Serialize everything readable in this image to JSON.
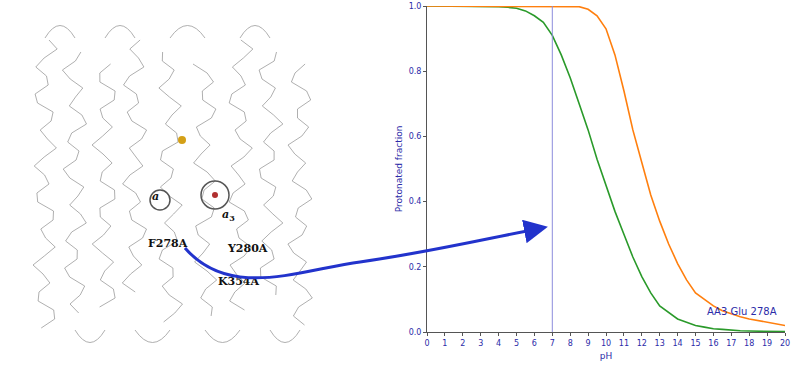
{
  "chart_data": {
    "type": "line",
    "x": [
      0,
      0.5,
      1,
      1.5,
      2,
      2.5,
      3,
      3.5,
      4,
      4.5,
      5,
      5.5,
      6,
      6.5,
      7,
      7.5,
      8,
      8.5,
      9,
      9.5,
      10,
      10.5,
      11,
      11.5,
      12,
      12.5,
      13,
      13.5,
      14,
      14.5,
      15,
      15.5,
      16,
      16.5,
      17,
      17.5,
      18,
      18.5,
      19,
      19.5,
      20
    ],
    "series": [
      {
        "color": "#2a9a2a",
        "values": [
          1,
          1,
          1,
          1,
          1,
          1,
          1,
          0.999,
          0.998,
          0.996,
          0.993,
          0.985,
          0.97,
          0.95,
          0.91,
          0.85,
          0.78,
          0.7,
          0.62,
          0.53,
          0.45,
          0.37,
          0.3,
          0.23,
          0.17,
          0.12,
          0.08,
          0.06,
          0.04,
          0.03,
          0.02,
          0.015,
          0.01,
          0.008,
          0.005,
          0.004,
          0.003,
          0.002,
          0.002,
          0.001,
          0.001
        ]
      },
      {
        "color": "#ff7f0e",
        "values": [
          1,
          1,
          1,
          1,
          1,
          1,
          1,
          1,
          1,
          1,
          1,
          1,
          1,
          1,
          1,
          1,
          1,
          0.998,
          0.99,
          0.97,
          0.93,
          0.85,
          0.74,
          0.62,
          0.52,
          0.42,
          0.34,
          0.27,
          0.21,
          0.16,
          0.12,
          0.1,
          0.08,
          0.065,
          0.055,
          0.047,
          0.04,
          0.035,
          0.03,
          0.025,
          0.02
        ]
      }
    ],
    "xlabel": "pH",
    "ylabel": "Protonated fraction",
    "xlim": [
      0,
      20
    ],
    "xticks": [
      0,
      1,
      2,
      3,
      4,
      5,
      6,
      7,
      8,
      9,
      10,
      11,
      12,
      13,
      14,
      15,
      16,
      17,
      18,
      19,
      20
    ],
    "ylim": [
      0,
      1
    ],
    "yticks": [
      {
        "value": 0,
        "label": "0.0"
      },
      {
        "value": 0.2,
        "label": "0.2"
      },
      {
        "value": 0.4,
        "label": "0.4"
      },
      {
        "value": 0.6,
        "label": "0.6"
      },
      {
        "value": 0.8,
        "label": "0.8"
      },
      {
        "value": 1,
        "label": "1.0"
      }
    ],
    "grid": false,
    "vlines": [
      7
    ],
    "annotations": [
      {
        "text": "AA3 Glu 278A",
        "x": 17.6,
        "y": 0.04
      }
    ]
  },
  "structure_labels": [
    "a",
    "a3",
    "F278A",
    "Y280A",
    "K354A"
  ]
}
